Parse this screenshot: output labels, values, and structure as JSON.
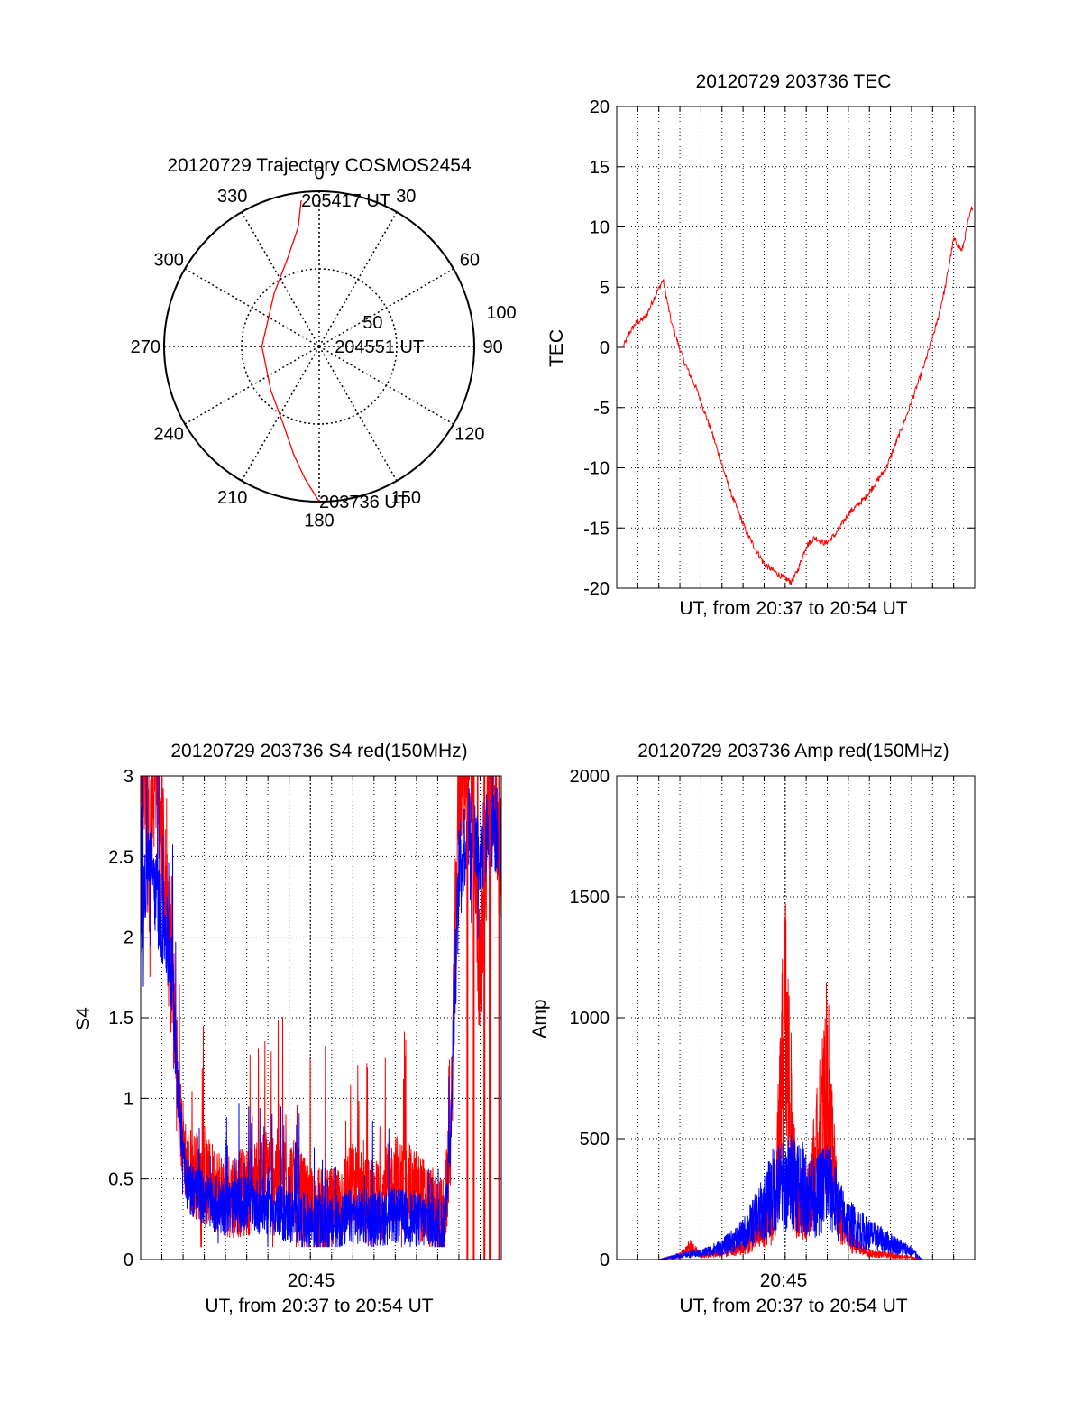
{
  "colors": {
    "red": "#ff0000",
    "blue": "#0000ff",
    "axis": "#000000",
    "grid": "#000000",
    "background": "#ffffff"
  },
  "chart_data": [
    {
      "id": "trajectory",
      "type": "scatter",
      "projection": "polar",
      "title": "20120729 Trajectory COSMOS2454",
      "angle_ticks": [
        "0",
        "30",
        "60",
        "90",
        "120",
        "150",
        "180",
        "210",
        "240",
        "270",
        "300",
        "330"
      ],
      "radius_ticks": [
        "50",
        "100"
      ],
      "radius_max": 100,
      "grid": true,
      "series": [
        {
          "color": "#ff0000",
          "points": [
            [
              180,
              100
            ],
            [
              186,
              86
            ],
            [
              193,
              72
            ],
            [
              205,
              55
            ],
            [
              228,
              42
            ],
            [
              270,
              37
            ],
            [
              320,
              45
            ],
            [
              340,
              60
            ],
            [
              350,
              78
            ],
            [
              353,
              95
            ]
          ]
        }
      ],
      "annotations": [
        {
          "text": "205417 UT",
          "azimuth": 353,
          "radius": 95
        },
        {
          "text": "204551 UT",
          "azimuth": 90,
          "radius": 10
        },
        {
          "text": "203736 UT",
          "azimuth": 180,
          "radius": 100
        }
      ]
    },
    {
      "id": "tec",
      "type": "line",
      "title": "20120729 203736 TEC",
      "xlabel": "UT, from 20:37 to 20:54 UT",
      "ylabel": "TEC",
      "xlim": [
        0,
        17
      ],
      "ylim": [
        -20,
        20
      ],
      "yticks": [
        "-20",
        "-15",
        "-10",
        "-5",
        "0",
        "5",
        "10",
        "15",
        "20"
      ],
      "grid": true,
      "series": [
        {
          "color": "#ff0000",
          "x": [
            0.3,
            0.6,
            0.9,
            1.2,
            1.4,
            1.8,
            2.2,
            2.6,
            3.2,
            3.8,
            4.6,
            5.4,
            6.2,
            7.0,
            7.8,
            8.3,
            8.6,
            9.0,
            9.4,
            9.9,
            10.4,
            11.0,
            11.8,
            12.8,
            13.8,
            14.6,
            15.2,
            15.6,
            16.0,
            16.4,
            16.7,
            16.9
          ],
          "y": [
            0.0,
            1.2,
            2.0,
            2.3,
            2.6,
            4.2,
            5.6,
            2.0,
            -1.2,
            -3.5,
            -7.5,
            -12.0,
            -15.5,
            -18.0,
            -19.0,
            -19.5,
            -18.5,
            -16.5,
            -15.8,
            -16.3,
            -15.5,
            -13.8,
            -12.5,
            -10.0,
            -5.5,
            -1.5,
            2.0,
            5.0,
            9.0,
            8.0,
            10.5,
            11.8
          ]
        }
      ]
    },
    {
      "id": "s4",
      "type": "line",
      "title": "20120729 203736 S4 red(150MHz)",
      "xlabel": "UT, from 20:37 to 20:54 UT",
      "ylabel": "S4",
      "xtick_label": "20:45",
      "xlim": [
        0,
        17
      ],
      "ylim": [
        0,
        3
      ],
      "yticks": [
        "0",
        "0.5",
        "1",
        "1.5",
        "2",
        "2.5",
        "3"
      ],
      "grid": true,
      "series": [
        {
          "color": "#ff0000",
          "x": [
            0.0,
            0.4,
            0.8,
            1.2,
            1.5,
            1.8,
            2.2,
            3.0,
            4.0,
            5.0,
            6.0,
            7.0,
            8.0,
            9.0,
            10.0,
            11.0,
            12.0,
            13.0,
            14.0,
            14.3,
            14.6,
            15.0,
            15.5,
            16.0,
            16.5,
            17.0
          ],
          "y": [
            3.0,
            2.5,
            3.0,
            2.0,
            1.5,
            0.8,
            0.45,
            0.38,
            0.3,
            0.3,
            0.45,
            0.4,
            0.2,
            0.18,
            0.35,
            0.22,
            0.4,
            0.3,
            0.15,
            0.12,
            0.6,
            2.8,
            3.0,
            1.5,
            3.0,
            2.2
          ]
        },
        {
          "color": "#0000ff",
          "x": [
            0.0,
            0.4,
            0.8,
            1.2,
            1.5,
            1.8,
            2.2,
            3.0,
            4.0,
            5.0,
            6.0,
            7.0,
            8.0,
            9.0,
            10.0,
            11.0,
            12.0,
            13.0,
            14.0,
            14.3,
            14.6,
            15.0,
            15.5,
            16.0,
            16.5,
            17.0
          ],
          "y": [
            2.0,
            2.4,
            2.1,
            1.9,
            1.6,
            0.9,
            0.4,
            0.3,
            0.25,
            0.28,
            0.25,
            0.2,
            0.16,
            0.14,
            0.2,
            0.18,
            0.2,
            0.18,
            0.15,
            0.14,
            0.7,
            2.3,
            2.6,
            2.4,
            2.6,
            2.5
          ]
        }
      ],
      "spikes": [
        {
          "color": "#ff0000",
          "x": [
            15.4,
            15.7,
            16.2,
            16.45,
            16.9
          ],
          "from": 0,
          "to": 3
        }
      ]
    },
    {
      "id": "amp",
      "type": "line",
      "title": "20120729 203736 Amp red(150MHz)",
      "xlabel": "UT, from 20:37 to 20:54 UT",
      "ylabel": "Amp",
      "xtick_label": "20:45",
      "xlim": [
        0,
        17
      ],
      "ylim": [
        0,
        2000
      ],
      "yticks": [
        "0",
        "500",
        "1000",
        "1500",
        "2000"
      ],
      "grid": true,
      "series": [
        {
          "color": "#ff0000",
          "x": [
            0.0,
            2.0,
            3.0,
            3.5,
            4.0,
            5.0,
            6.0,
            7.0,
            7.5,
            8.0,
            8.5,
            9.0,
            9.5,
            10.0,
            10.5,
            11.0,
            11.5,
            12.0,
            13.0,
            14.0,
            14.5,
            17.0
          ],
          "y": [
            0,
            0,
            20,
            60,
            20,
            30,
            60,
            150,
            200,
            1150,
            300,
            250,
            500,
            850,
            200,
            100,
            60,
            30,
            20,
            10,
            0,
            0
          ]
        },
        {
          "color": "#0000ff",
          "x": [
            0.0,
            2.0,
            3.0,
            4.0,
            5.0,
            6.0,
            7.0,
            7.5,
            8.0,
            8.5,
            9.0,
            9.5,
            10.0,
            10.5,
            11.0,
            11.5,
            12.0,
            13.0,
            14.0,
            14.5,
            17.0
          ],
          "y": [
            0,
            0,
            20,
            30,
            60,
            120,
            250,
            350,
            350,
            400,
            320,
            300,
            380,
            250,
            180,
            150,
            120,
            80,
            40,
            0,
            0
          ]
        }
      ]
    }
  ]
}
